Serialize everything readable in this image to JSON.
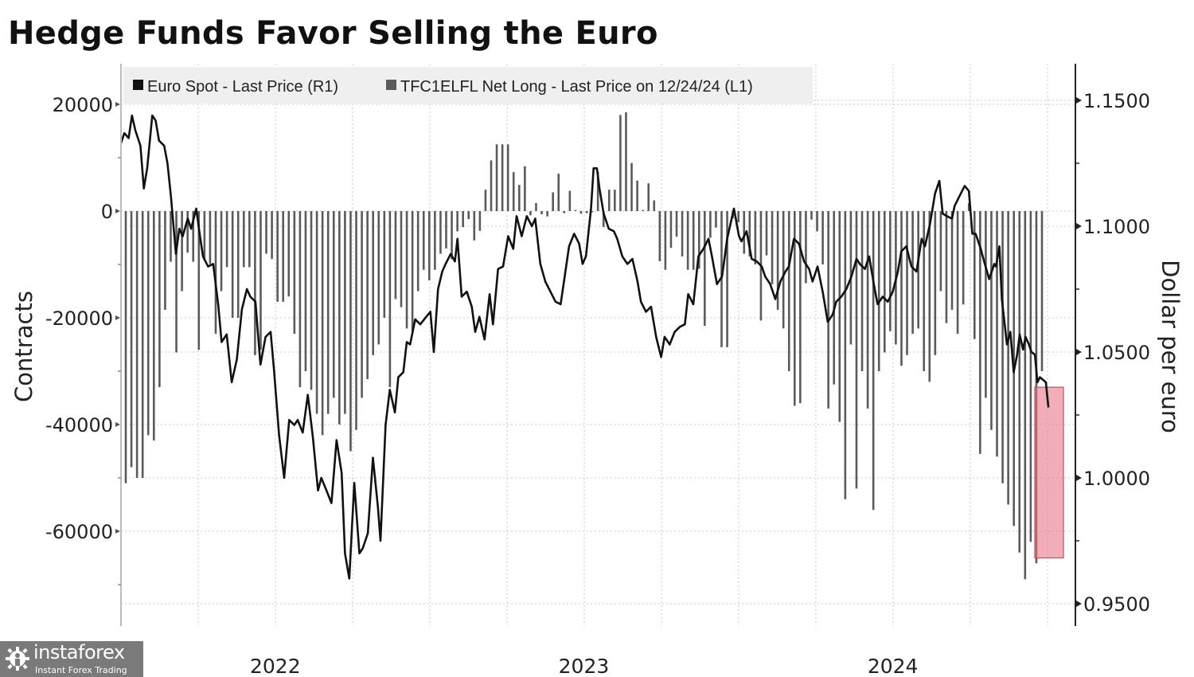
{
  "title": "Hedge Funds Favor Selling the Euro",
  "watermark": {
    "brand": "instaforex",
    "tagline": "Instant Forex Trading",
    "icon": "gear-person-icon"
  },
  "chart_data": {
    "type": "bar+line",
    "title": "Hedge Funds Favor Selling the Euro",
    "legend": [
      {
        "label": "Euro Spot - Last Price (R1)",
        "color": "#111111",
        "type": "line",
        "axis": "right"
      },
      {
        "label": "TFC1ELFL Net Long - Last Price on 12/24/24 (L1)",
        "color": "#5a5a5a",
        "type": "bar",
        "axis": "left"
      }
    ],
    "legend_position": "top-left",
    "grid": true,
    "x_axis": {
      "start": "2022-01-01",
      "end": "2025-01-10",
      "year_labels": [
        "2022",
        "2023",
        "2024"
      ]
    },
    "left_axis": {
      "label": "Contracts",
      "ticks": [
        20000,
        0,
        -20000,
        -40000,
        -60000
      ],
      "tick_labels": [
        "20000",
        "0",
        "-20000",
        "-40000",
        "-60000"
      ],
      "range": [
        -74000,
        27000
      ]
    },
    "right_axis": {
      "label": "Dollar per euro",
      "ticks": [
        1.15,
        1.1,
        1.05,
        1.0,
        0.95
      ],
      "tick_labels": [
        "1.1500",
        "1.1000",
        "1.0500",
        "1.0000",
        "0.9500"
      ],
      "range": [
        0.9445,
        1.1585
      ]
    },
    "highlight": {
      "description": "Recent period shaded red",
      "date_start": "2024-12-01",
      "date_end": "2024-12-31",
      "contracts_range": [
        -65000,
        -33000
      ],
      "color": "#e8788a"
    },
    "net_long_weekly": [
      -51000,
      -48000,
      -50000,
      -50000,
      -42000,
      -43000,
      -33000,
      -18500,
      -9500,
      -26500,
      -15000,
      -7800,
      -9500,
      -26000,
      -9300,
      -9900,
      -23000,
      -15000,
      -10500,
      -20000,
      -20000,
      -10500,
      -10500,
      -27000,
      -26000,
      -8000,
      -9000,
      -17000,
      -17000,
      -16000,
      -23000,
      -33000,
      -30000,
      -33500,
      -38000,
      -42000,
      -38000,
      -35000,
      -40000,
      -38000,
      -45000,
      -41000,
      -35000,
      -31500,
      -27000,
      -25000,
      -20000,
      -33000,
      -16500,
      -18000,
      -22000,
      -22500,
      -15000,
      -11000,
      -13000,
      -11000,
      -8000,
      -7000,
      -9000,
      -3800,
      -3000,
      -1500,
      -5500,
      -3700,
      4000,
      9500,
      12500,
      12500,
      12500,
      7300,
      4900,
      8400,
      -800,
      1500,
      -600,
      -1000,
      3500,
      7000,
      -400,
      3800,
      200,
      -500,
      -400,
      -200,
      7300,
      -3000,
      4000,
      4000,
      18000,
      18500,
      9000,
      5700,
      200,
      5200,
      2000,
      -9400,
      -11000,
      -6900,
      -4800,
      -8500,
      -11000,
      -11000,
      -10800,
      -21500,
      -5000,
      -3100,
      -25500,
      -25500,
      -1400,
      -2100,
      -8000,
      -8500,
      -10000,
      -20500,
      -8300,
      -13700,
      -18500,
      -22000,
      -30000,
      -36500,
      -36000,
      -13500,
      -1600,
      -3800,
      -10000,
      -37000,
      -32500,
      -39500,
      -54000,
      -25000,
      -52000,
      -30000,
      -37000,
      -56000,
      -30000,
      -26500,
      -22500,
      -25000,
      -29000,
      -27000,
      -23000,
      -22000,
      -30000,
      -32000,
      -27000,
      -15000,
      -21000,
      -18500,
      -23000,
      -17500,
      1500,
      -24000,
      -45500,
      -35000,
      -41000,
      -46000,
      -51000,
      -55000,
      -59000,
      -64000,
      -69000,
      -62000,
      -66000,
      -30000
    ],
    "euro_spot": [
      [
        "2022-01-01",
        1.133
      ],
      [
        "2022-01-05",
        1.137
      ],
      [
        "2022-01-10",
        1.135
      ],
      [
        "2022-01-14",
        1.144
      ],
      [
        "2022-01-18",
        1.138
      ],
      [
        "2022-01-24",
        1.132
      ],
      [
        "2022-01-28",
        1.115
      ],
      [
        "2022-02-01",
        1.123
      ],
      [
        "2022-02-07",
        1.144
      ],
      [
        "2022-02-11",
        1.142
      ],
      [
        "2022-02-15",
        1.134
      ],
      [
        "2022-02-21",
        1.132
      ],
      [
        "2022-02-25",
        1.125
      ],
      [
        "2022-03-01",
        1.112
      ],
      [
        "2022-03-07",
        1.089
      ],
      [
        "2022-03-11",
        1.099
      ],
      [
        "2022-03-15",
        1.096
      ],
      [
        "2022-03-21",
        1.103
      ],
      [
        "2022-03-25",
        1.099
      ],
      [
        "2022-03-31",
        1.107
      ],
      [
        "2022-04-04",
        1.097
      ],
      [
        "2022-04-08",
        1.088
      ],
      [
        "2022-04-14",
        1.084
      ],
      [
        "2022-04-20",
        1.085
      ],
      [
        "2022-04-26",
        1.069
      ],
      [
        "2022-04-30",
        1.054
      ],
      [
        "2022-05-06",
        1.057
      ],
      [
        "2022-05-12",
        1.038
      ],
      [
        "2022-05-18",
        1.047
      ],
      [
        "2022-05-24",
        1.067
      ],
      [
        "2022-05-30",
        1.075
      ],
      [
        "2022-06-03",
        1.072
      ],
      [
        "2022-06-09",
        1.07
      ],
      [
        "2022-06-15",
        1.045
      ],
      [
        "2022-06-21",
        1.056
      ],
      [
        "2022-06-27",
        1.058
      ],
      [
        "2022-07-01",
        1.043
      ],
      [
        "2022-07-07",
        1.017
      ],
      [
        "2022-07-13",
        1.0
      ],
      [
        "2022-07-19",
        1.023
      ],
      [
        "2022-07-25",
        1.021
      ],
      [
        "2022-07-29",
        1.023
      ],
      [
        "2022-08-04",
        1.018
      ],
      [
        "2022-08-10",
        1.033
      ],
      [
        "2022-08-16",
        1.016
      ],
      [
        "2022-08-22",
        0.995
      ],
      [
        "2022-08-26",
        1.0
      ],
      [
        "2022-09-01",
        0.995
      ],
      [
        "2022-09-07",
        0.99
      ],
      [
        "2022-09-13",
        1.015
      ],
      [
        "2022-09-19",
        1.002
      ],
      [
        "2022-09-23",
        0.97
      ],
      [
        "2022-09-28",
        0.96
      ],
      [
        "2022-10-04",
        0.998
      ],
      [
        "2022-10-10",
        0.97
      ],
      [
        "2022-10-14",
        0.972
      ],
      [
        "2022-10-20",
        0.978
      ],
      [
        "2022-10-26",
        1.008
      ],
      [
        "2022-11-01",
        0.988
      ],
      [
        "2022-11-04",
        0.975
      ],
      [
        "2022-11-10",
        1.021
      ],
      [
        "2022-11-15",
        1.035
      ],
      [
        "2022-11-21",
        1.026
      ],
      [
        "2022-11-25",
        1.04
      ],
      [
        "2022-12-01",
        1.042
      ],
      [
        "2022-12-05",
        1.054
      ],
      [
        "2022-12-09",
        1.053
      ],
      [
        "2022-12-15",
        1.063
      ],
      [
        "2022-12-21",
        1.061
      ],
      [
        "2022-12-28",
        1.064
      ],
      [
        "2023-01-02",
        1.066
      ],
      [
        "2023-01-06",
        1.05
      ],
      [
        "2023-01-11",
        1.075
      ],
      [
        "2023-01-16",
        1.082
      ],
      [
        "2023-01-20",
        1.085
      ],
      [
        "2023-01-26",
        1.089
      ],
      [
        "2023-01-31",
        1.086
      ],
      [
        "2023-02-03",
        1.095
      ],
      [
        "2023-02-08",
        1.072
      ],
      [
        "2023-02-14",
        1.074
      ],
      [
        "2023-02-20",
        1.068
      ],
      [
        "2023-02-24",
        1.058
      ],
      [
        "2023-03-01",
        1.064
      ],
      [
        "2023-03-07",
        1.055
      ],
      [
        "2023-03-13",
        1.073
      ],
      [
        "2023-03-17",
        1.061
      ],
      [
        "2023-03-23",
        1.083
      ],
      [
        "2023-03-29",
        1.084
      ],
      [
        "2023-04-04",
        1.096
      ],
      [
        "2023-04-10",
        1.091
      ],
      [
        "2023-04-14",
        1.104
      ],
      [
        "2023-04-20",
        1.096
      ],
      [
        "2023-04-26",
        1.104
      ],
      [
        "2023-05-02",
        1.1
      ],
      [
        "2023-05-06",
        1.103
      ],
      [
        "2023-05-12",
        1.085
      ],
      [
        "2023-05-18",
        1.078
      ],
      [
        "2023-05-24",
        1.074
      ],
      [
        "2023-05-30",
        1.07
      ],
      [
        "2023-06-05",
        1.069
      ],
      [
        "2023-06-09",
        1.078
      ],
      [
        "2023-06-15",
        1.092
      ],
      [
        "2023-06-21",
        1.097
      ],
      [
        "2023-06-27",
        1.093
      ],
      [
        "2023-07-01",
        1.085
      ],
      [
        "2023-07-05",
        1.088
      ],
      [
        "2023-07-11",
        1.107
      ],
      [
        "2023-07-14",
        1.123
      ],
      [
        "2023-07-18",
        1.123
      ],
      [
        "2023-07-21",
        1.115
      ],
      [
        "2023-07-26",
        1.105
      ],
      [
        "2023-08-01",
        1.099
      ],
      [
        "2023-08-07",
        1.098
      ],
      [
        "2023-08-11",
        1.095
      ],
      [
        "2023-08-17",
        1.088
      ],
      [
        "2023-08-23",
        1.085
      ],
      [
        "2023-08-29",
        1.087
      ],
      [
        "2023-09-04",
        1.078
      ],
      [
        "2023-09-08",
        1.07
      ],
      [
        "2023-09-14",
        1.066
      ],
      [
        "2023-09-20",
        1.068
      ],
      [
        "2023-09-26",
        1.056
      ],
      [
        "2023-10-02",
        1.048
      ],
      [
        "2023-10-06",
        1.056
      ],
      [
        "2023-10-12",
        1.053
      ],
      [
        "2023-10-18",
        1.058
      ],
      [
        "2023-10-24",
        1.06
      ],
      [
        "2023-10-30",
        1.061
      ],
      [
        "2023-11-03",
        1.073
      ],
      [
        "2023-11-09",
        1.069
      ],
      [
        "2023-11-15",
        1.088
      ],
      [
        "2023-11-21",
        1.091
      ],
      [
        "2023-11-27",
        1.095
      ],
      [
        "2023-12-01",
        1.088
      ],
      [
        "2023-12-07",
        1.077
      ],
      [
        "2023-12-13",
        1.08
      ],
      [
        "2023-12-19",
        1.095
      ],
      [
        "2023-12-27",
        1.107
      ],
      [
        "2024-01-02",
        1.096
      ],
      [
        "2024-01-05",
        1.094
      ],
      [
        "2024-01-11",
        1.098
      ],
      [
        "2024-01-17",
        1.087
      ],
      [
        "2024-01-23",
        1.086
      ],
      [
        "2024-01-29",
        1.084
      ],
      [
        "2024-02-02",
        1.08
      ],
      [
        "2024-02-08",
        1.077
      ],
      [
        "2024-02-14",
        1.071
      ],
      [
        "2024-02-20",
        1.078
      ],
      [
        "2024-02-26",
        1.082
      ],
      [
        "2024-03-01",
        1.084
      ],
      [
        "2024-03-07",
        1.095
      ],
      [
        "2024-03-13",
        1.093
      ],
      [
        "2024-03-19",
        1.086
      ],
      [
        "2024-03-25",
        1.083
      ],
      [
        "2024-03-29",
        1.078
      ],
      [
        "2024-04-04",
        1.084
      ],
      [
        "2024-04-10",
        1.074
      ],
      [
        "2024-04-16",
        1.062
      ],
      [
        "2024-04-22",
        1.065
      ],
      [
        "2024-04-26",
        1.07
      ],
      [
        "2024-05-02",
        1.072
      ],
      [
        "2024-05-08",
        1.075
      ],
      [
        "2024-05-14",
        1.08
      ],
      [
        "2024-05-20",
        1.087
      ],
      [
        "2024-05-24",
        1.085
      ],
      [
        "2024-05-30",
        1.083
      ],
      [
        "2024-06-04",
        1.088
      ],
      [
        "2024-06-10",
        1.076
      ],
      [
        "2024-06-14",
        1.069
      ],
      [
        "2024-06-20",
        1.072
      ],
      [
        "2024-06-26",
        1.07
      ],
      [
        "2024-07-02",
        1.074
      ],
      [
        "2024-07-08",
        1.082
      ],
      [
        "2024-07-12",
        1.09
      ],
      [
        "2024-07-18",
        1.092
      ],
      [
        "2024-07-24",
        1.084
      ],
      [
        "2024-07-30",
        1.082
      ],
      [
        "2024-08-05",
        1.095
      ],
      [
        "2024-08-09",
        1.092
      ],
      [
        "2024-08-15",
        1.101
      ],
      [
        "2024-08-21",
        1.113
      ],
      [
        "2024-08-26",
        1.118
      ],
      [
        "2024-08-30",
        1.105
      ],
      [
        "2024-09-04",
        1.104
      ],
      [
        "2024-09-10",
        1.103
      ],
      [
        "2024-09-13",
        1.108
      ],
      [
        "2024-09-19",
        1.112
      ],
      [
        "2024-09-25",
        1.116
      ],
      [
        "2024-09-30",
        1.114
      ],
      [
        "2024-10-04",
        1.097
      ],
      [
        "2024-10-08",
        1.097
      ],
      [
        "2024-10-14",
        1.091
      ],
      [
        "2024-10-18",
        1.086
      ],
      [
        "2024-10-24",
        1.079
      ],
      [
        "2024-10-30",
        1.085
      ],
      [
        "2024-11-01",
        1.084
      ],
      [
        "2024-11-05",
        1.092
      ],
      [
        "2024-11-08",
        1.071
      ],
      [
        "2024-11-14",
        1.053
      ],
      [
        "2024-11-18",
        1.058
      ],
      [
        "2024-11-22",
        1.042
      ],
      [
        "2024-11-26",
        1.049
      ],
      [
        "2024-11-29",
        1.057
      ],
      [
        "2024-12-03",
        1.051
      ],
      [
        "2024-12-06",
        1.056
      ],
      [
        "2024-12-10",
        1.053
      ],
      [
        "2024-12-13",
        1.05
      ],
      [
        "2024-12-17",
        1.049
      ],
      [
        "2024-12-20",
        1.038
      ],
      [
        "2024-12-23",
        1.04
      ],
      [
        "2024-12-30",
        1.038
      ],
      [
        "2025-01-02",
        1.028
      ]
    ]
  }
}
